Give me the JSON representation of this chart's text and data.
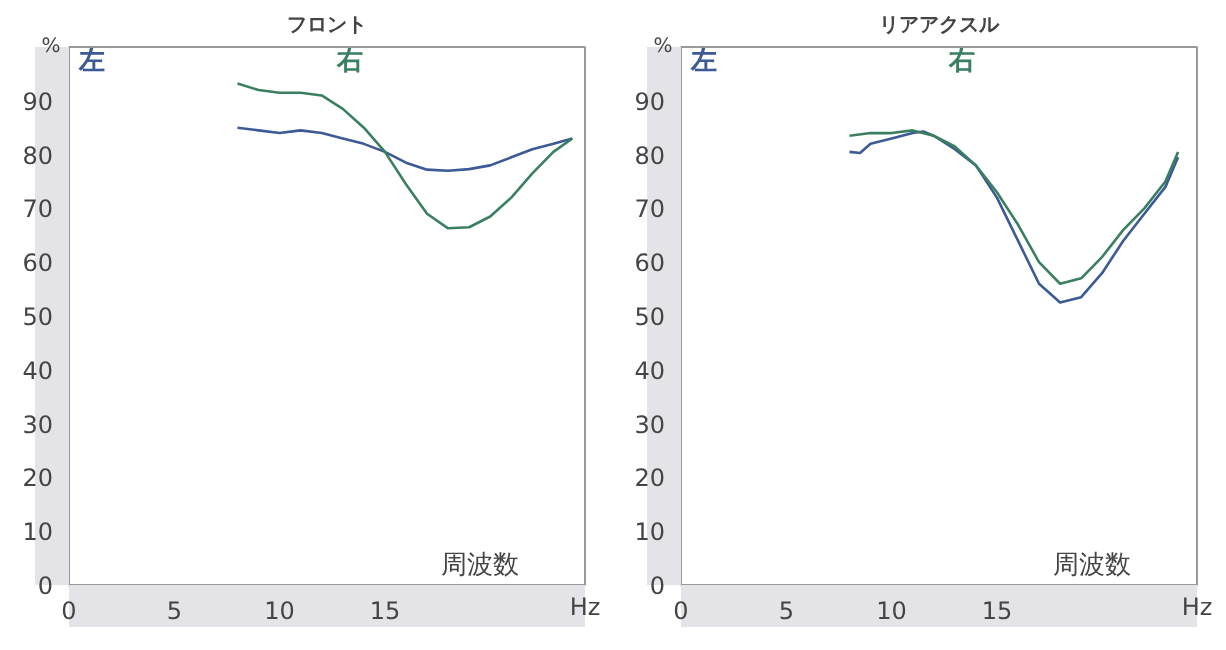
{
  "chart_data": [
    {
      "type": "line",
      "title": "フロント",
      "xlabel": "Hz",
      "ylabel": "%",
      "annotations": [
        "周波数"
      ],
      "xlim": [
        0,
        24.5
      ],
      "ylim": [
        0,
        100
      ],
      "xticks": [
        0,
        5,
        10,
        15
      ],
      "yticks": [
        0,
        10,
        20,
        30,
        40,
        50,
        60,
        70,
        80,
        90
      ],
      "grid": false,
      "legend": "top",
      "series": [
        {
          "name": "左",
          "color": "#3c5a96",
          "x": [
            8,
            9,
            10,
            11,
            12,
            13,
            14,
            15,
            16,
            17,
            18,
            19,
            20,
            21,
            22,
            23,
            23.9
          ],
          "values": [
            85,
            84.5,
            84,
            84.5,
            84,
            83,
            82,
            80.5,
            78.5,
            77.2,
            77,
            77.3,
            78,
            79.5,
            81,
            82,
            83
          ]
        },
        {
          "name": "右",
          "color": "#3a8060",
          "x": [
            8,
            9,
            10,
            11,
            12,
            13,
            14,
            15,
            16,
            17,
            18,
            19,
            20,
            21,
            22,
            23,
            23.9
          ],
          "values": [
            93.2,
            92,
            91.5,
            91.5,
            91,
            88.5,
            85,
            80.5,
            74.5,
            69,
            66.3,
            66.5,
            68.5,
            72,
            76.5,
            80.5,
            83
          ]
        }
      ]
    },
    {
      "type": "line",
      "title": "リアアクスル",
      "xlabel": "Hz",
      "ylabel": "%",
      "annotations": [
        "周波数"
      ],
      "xlim": [
        0,
        24.5
      ],
      "ylim": [
        0,
        100
      ],
      "xticks": [
        0,
        5,
        10,
        15
      ],
      "yticks": [
        0,
        10,
        20,
        30,
        40,
        50,
        60,
        70,
        80,
        90
      ],
      "grid": false,
      "legend": "top",
      "series": [
        {
          "name": "左",
          "color": "#3c5a96",
          "x": [
            8,
            8.5,
            9,
            10,
            11,
            11.5,
            12,
            13,
            14,
            15,
            16,
            17,
            18,
            19,
            20,
            21,
            22,
            23,
            23.6
          ],
          "values": [
            80.5,
            80.3,
            82,
            83,
            84,
            84.3,
            83.5,
            81,
            78,
            72,
            64,
            56,
            52.5,
            53.5,
            58,
            64,
            69,
            74,
            79.5
          ]
        },
        {
          "name": "右",
          "color": "#3a8060",
          "x": [
            8,
            9,
            10,
            11,
            12,
            13,
            14,
            15,
            16,
            17,
            18,
            19,
            20,
            21,
            22,
            23,
            23.6
          ],
          "values": [
            83.5,
            84,
            84,
            84.5,
            83.5,
            81.5,
            78,
            73,
            67,
            60,
            56,
            57,
            61,
            66,
            70,
            75,
            80.5
          ]
        }
      ]
    }
  ]
}
